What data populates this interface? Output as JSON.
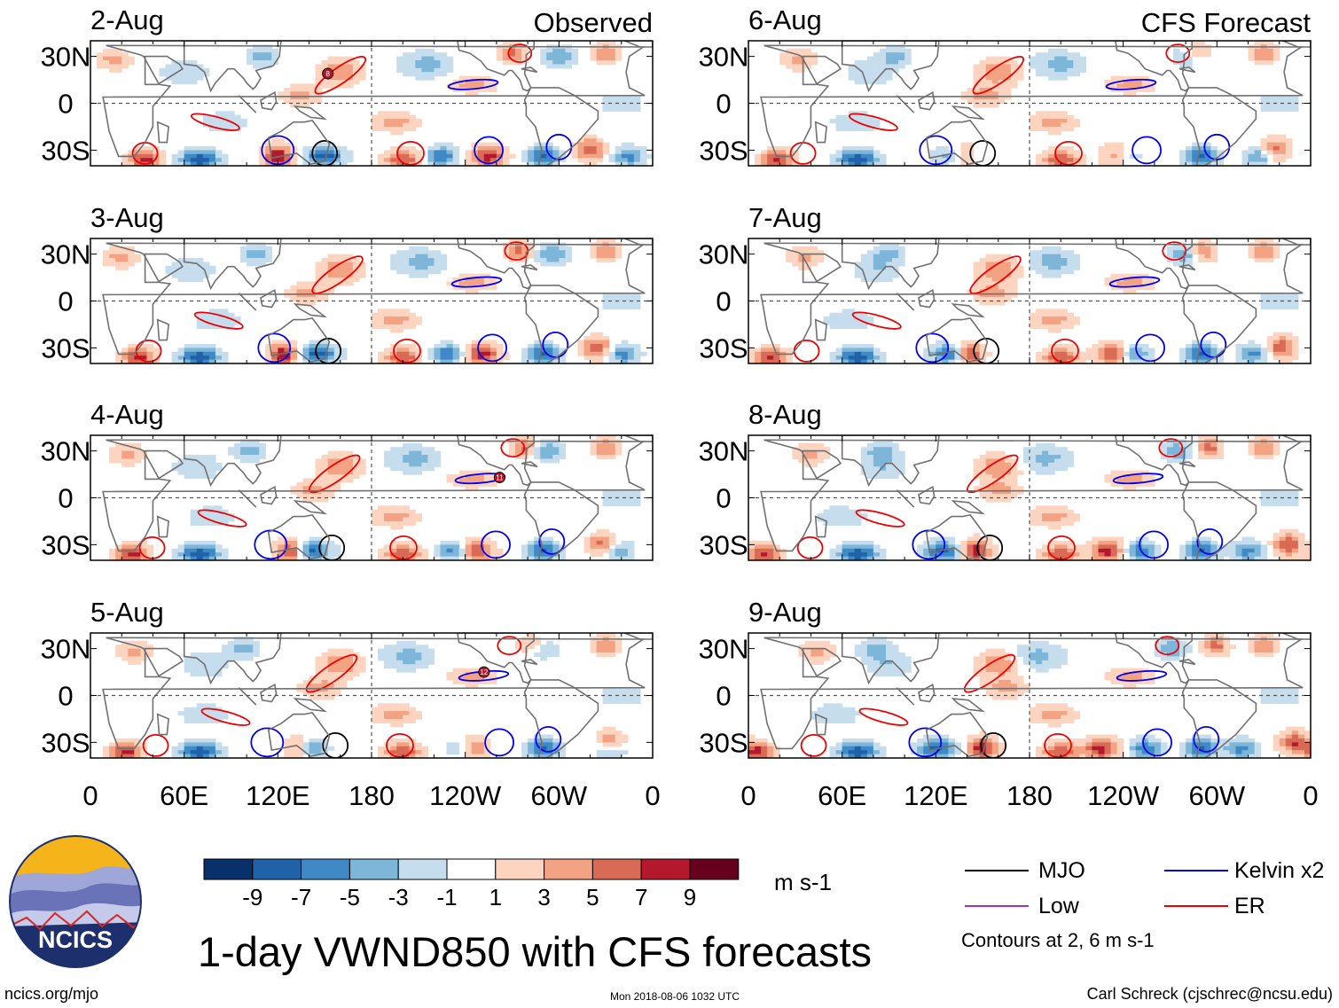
{
  "figure": {
    "title": "1-day VWND850 with CFS forecasts",
    "url": "ncics.org/mjo",
    "timestamp": "Mon 2018-08-06 1032 UTC",
    "author": "Carl Schreck (cjschrec@ncsu.edu)",
    "logo_text": "NCICS"
  },
  "colorbar": {
    "unit": "m s-1",
    "tick_labels": [
      "-9",
      "-7",
      "-5",
      "-3",
      "-1",
      "1",
      "3",
      "5",
      "7",
      "9"
    ],
    "bin_edges": [
      -11,
      -9,
      -7,
      -5,
      -3,
      -1,
      1,
      3,
      5,
      7,
      9,
      11
    ],
    "colors": [
      "#08306b",
      "#1f62a8",
      "#3f8ac6",
      "#7db6d9",
      "#c6ddee",
      "#ffffff",
      "#fcd4bf",
      "#f3a283",
      "#d96b56",
      "#b3182c",
      "#67001f"
    ]
  },
  "legend": {
    "items": [
      {
        "label": "MJO",
        "color": "#000000"
      },
      {
        "label": "Kelvin x2",
        "color": "#0000ee"
      },
      {
        "label": "Low",
        "color": "#9933cc"
      },
      {
        "label": "ER",
        "color": "#ee0000"
      }
    ],
    "note": "Contours at 2, 6 m s-1"
  },
  "chart_data": {
    "type": "heatmap",
    "variable": "850-hPa meridional wind (VWND850), 1-day",
    "x_ticks": [
      "0",
      "60E",
      "120E",
      "180",
      "120W",
      "60W",
      "0"
    ],
    "y_ticks": [
      "30N",
      "0",
      "30S"
    ],
    "xlim_deg_east": [
      0,
      360
    ],
    "ylim_deg": [
      -40,
      40
    ],
    "columns": [
      {
        "header": "Observed",
        "panels": [
          "2-Aug",
          "3-Aug",
          "4-Aug",
          "5-Aug"
        ]
      },
      {
        "header": "CFS Forecast",
        "panels": [
          "6-Aug",
          "7-Aug",
          "8-Aug",
          "9-Aug"
        ]
      }
    ],
    "storm_markers": [
      {
        "panel": "2-Aug",
        "label": "8",
        "lon": 152,
        "lat": 19
      },
      {
        "panel": "4-Aug",
        "label": "11",
        "lon": 262,
        "lat": 13
      },
      {
        "panel": "5-Aug",
        "label": "12",
        "lon": 252,
        "lat": 15
      }
    ]
  }
}
